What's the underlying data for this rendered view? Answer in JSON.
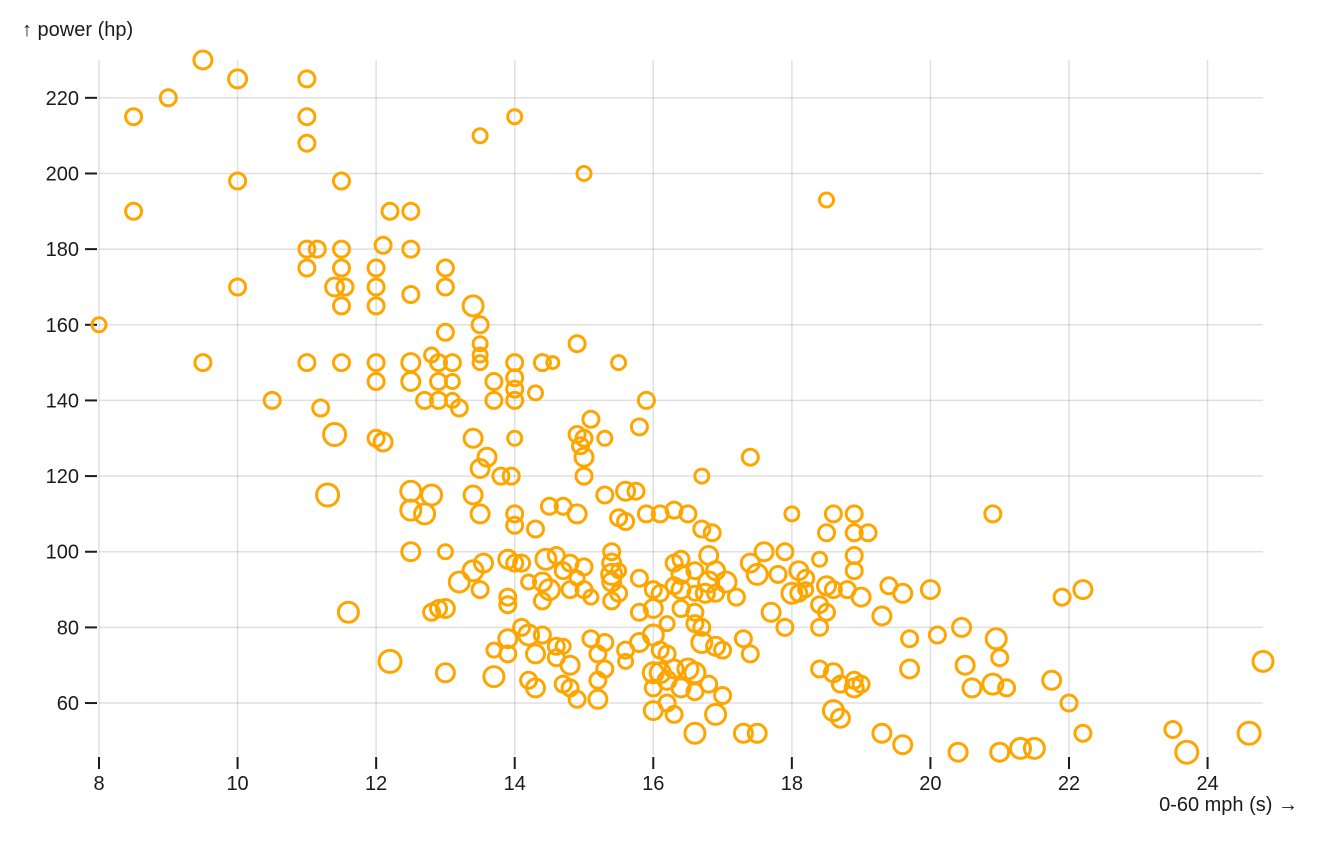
{
  "chart_data": {
    "type": "scatter",
    "title": "",
    "xlabel": "0-60 mph (s) →",
    "ylabel": "↑ power (hp)",
    "x_field": "0-60 mph (s)",
    "y_field": "power (hp)",
    "xlim": [
      8,
      24.8
    ],
    "ylim": [
      46,
      230
    ],
    "x_ticks": [
      8,
      10,
      12,
      14,
      16,
      18,
      20,
      22,
      24
    ],
    "y_ticks": [
      60,
      80,
      100,
      120,
      140,
      160,
      180,
      200,
      220
    ],
    "grid": true,
    "legend_position": "none",
    "marker": {
      "shape": "open-circle",
      "stroke": "#FFA500",
      "stroke_width": 3,
      "fill": "none"
    },
    "colors": {
      "accent": "#FFA500",
      "grid": "rgba(0,0,0,0.12)",
      "axis_text": "#1b1b1f",
      "tick": "#1b1b1f",
      "background": "#ffffff"
    },
    "points_format": [
      "x_seconds",
      "y_horsepower",
      "radius_px"
    ],
    "points": [
      [
        9.5,
        230,
        9
      ],
      [
        10,
        225,
        9
      ],
      [
        11,
        225,
        8
      ],
      [
        9,
        220,
        8
      ],
      [
        8.5,
        215,
        8
      ],
      [
        11,
        215,
        8
      ],
      [
        14,
        215,
        7
      ],
      [
        13.5,
        210,
        7
      ],
      [
        11,
        208,
        8
      ],
      [
        15,
        200,
        7
      ],
      [
        10,
        198,
        8
      ],
      [
        11.5,
        198,
        8
      ],
      [
        18.5,
        193,
        7
      ],
      [
        8.5,
        190,
        8
      ],
      [
        12.2,
        190,
        8
      ],
      [
        12.5,
        190,
        8
      ],
      [
        12.1,
        181,
        8
      ],
      [
        11,
        180,
        8
      ],
      [
        11.15,
        180,
        8
      ],
      [
        11.5,
        180,
        8
      ],
      [
        12.5,
        180,
        8
      ],
      [
        11,
        175,
        8
      ],
      [
        11.5,
        175,
        8
      ],
      [
        12,
        175,
        8
      ],
      [
        13,
        175,
        8
      ],
      [
        10,
        170,
        8
      ],
      [
        11.4,
        170,
        9
      ],
      [
        11.55,
        170,
        8
      ],
      [
        12,
        170,
        8
      ],
      [
        13,
        170,
        8
      ],
      [
        12.5,
        168,
        8
      ],
      [
        11.5,
        165,
        8
      ],
      [
        12,
        165,
        8
      ],
      [
        13.4,
        165,
        10
      ],
      [
        8,
        160,
        7
      ],
      [
        13.5,
        160,
        8
      ],
      [
        13,
        158,
        8
      ],
      [
        13.5,
        155,
        7
      ],
      [
        14.9,
        155,
        8
      ],
      [
        12.8,
        152,
        7
      ],
      [
        13.5,
        152,
        7
      ],
      [
        9.5,
        150,
        8
      ],
      [
        11,
        150,
        8
      ],
      [
        11.5,
        150,
        8
      ],
      [
        12,
        150,
        8
      ],
      [
        12.5,
        150,
        9
      ],
      [
        12.9,
        150,
        8
      ],
      [
        13.1,
        150,
        8
      ],
      [
        13.5,
        150,
        7
      ],
      [
        14,
        150,
        8
      ],
      [
        14.4,
        150,
        8
      ],
      [
        14.55,
        150,
        6
      ],
      [
        15.5,
        150,
        7
      ],
      [
        12,
        145,
        8
      ],
      [
        12.5,
        145,
        9
      ],
      [
        12.9,
        145,
        8
      ],
      [
        13.1,
        145,
        7
      ],
      [
        13.7,
        145,
        8
      ],
      [
        14,
        146,
        8
      ],
      [
        14,
        143,
        8
      ],
      [
        14.3,
        142,
        7
      ],
      [
        10.5,
        140,
        8
      ],
      [
        12.7,
        140,
        8
      ],
      [
        12.9,
        140,
        8
      ],
      [
        13.1,
        140,
        7
      ],
      [
        13.7,
        140,
        8
      ],
      [
        14,
        140,
        8
      ],
      [
        15.9,
        140,
        8
      ],
      [
        11.2,
        138,
        8
      ],
      [
        13.2,
        138,
        8
      ],
      [
        15.1,
        135,
        8
      ],
      [
        15.8,
        133,
        8
      ],
      [
        11.4,
        131,
        11
      ],
      [
        14.9,
        131,
        8
      ],
      [
        12,
        130,
        8
      ],
      [
        12.1,
        129,
        9
      ],
      [
        13.4,
        130,
        9
      ],
      [
        14,
        130,
        7
      ],
      [
        15,
        130,
        8
      ],
      [
        15.3,
        130,
        7
      ],
      [
        14.95,
        128,
        8
      ],
      [
        13.6,
        125,
        9
      ],
      [
        15,
        125,
        9
      ],
      [
        17.4,
        125,
        8
      ],
      [
        13.5,
        122,
        9
      ],
      [
        13.8,
        120,
        8
      ],
      [
        13.95,
        120,
        8
      ],
      [
        15,
        120,
        8
      ],
      [
        16.7,
        120,
        7
      ],
      [
        11.3,
        115,
        11
      ],
      [
        12.5,
        116,
        10
      ],
      [
        12.8,
        115,
        10
      ],
      [
        13.4,
        115,
        9
      ],
      [
        15.3,
        115,
        8
      ],
      [
        15.6,
        116,
        9
      ],
      [
        15.75,
        116,
        8
      ],
      [
        12.5,
        111,
        10
      ],
      [
        12.7,
        110,
        10
      ],
      [
        13.5,
        110,
        9
      ],
      [
        14,
        110,
        8
      ],
      [
        14.9,
        110,
        9
      ],
      [
        15.9,
        110,
        8
      ],
      [
        16.1,
        110,
        8
      ],
      [
        16.3,
        111,
        8
      ],
      [
        16.5,
        110,
        8
      ],
      [
        18,
        110,
        7
      ],
      [
        18.6,
        110,
        8
      ],
      [
        18.9,
        110,
        8
      ],
      [
        20.9,
        110,
        8
      ],
      [
        14.5,
        112,
        8
      ],
      [
        14.7,
        112,
        8
      ],
      [
        15.5,
        109,
        8
      ],
      [
        15.6,
        108,
        8
      ],
      [
        14,
        107,
        8
      ],
      [
        14.3,
        106,
        8
      ],
      [
        16.7,
        106,
        8
      ],
      [
        16.85,
        105,
        8
      ],
      [
        18.5,
        105,
        8
      ],
      [
        18.9,
        105,
        8
      ],
      [
        19.1,
        105,
        8
      ],
      [
        12.5,
        100,
        9
      ],
      [
        13,
        100,
        7
      ],
      [
        15.4,
        100,
        8
      ],
      [
        16.8,
        99,
        9
      ],
      [
        17.6,
        100,
        9
      ],
      [
        17.9,
        100,
        8
      ],
      [
        18.9,
        99,
        8
      ],
      [
        13.55,
        97,
        9
      ],
      [
        13.9,
        98,
        9
      ],
      [
        14,
        97,
        8
      ],
      [
        14.1,
        97,
        8
      ],
      [
        14.45,
        98,
        10
      ],
      [
        14.6,
        99,
        8
      ],
      [
        14.8,
        97,
        8
      ],
      [
        15.4,
        97,
        9
      ],
      [
        16.3,
        97,
        8
      ],
      [
        16.4,
        98,
        8
      ],
      [
        17.4,
        97,
        9
      ],
      [
        18.4,
        98,
        7
      ],
      [
        13.4,
        95,
        10
      ],
      [
        14.7,
        95,
        8
      ],
      [
        15,
        96,
        8
      ],
      [
        15.5,
        95,
        7
      ],
      [
        16.6,
        95,
        8
      ],
      [
        16.9,
        95,
        9
      ],
      [
        17.5,
        94,
        10
      ],
      [
        17.8,
        94,
        8
      ],
      [
        18.1,
        95,
        9
      ],
      [
        18.9,
        95,
        8
      ],
      [
        15.4,
        94,
        10
      ],
      [
        16.4,
        94,
        9
      ],
      [
        14.9,
        93,
        7
      ],
      [
        15.8,
        93,
        8
      ],
      [
        18.2,
        93,
        8
      ],
      [
        13.2,
        92,
        10
      ],
      [
        14.2,
        92,
        7
      ],
      [
        14.4,
        92,
        9
      ],
      [
        15.4,
        92,
        9
      ],
      [
        16.8,
        92,
        10
      ],
      [
        17.05,
        92,
        10
      ],
      [
        16.3,
        91,
        8
      ],
      [
        18.5,
        91,
        9
      ],
      [
        19.4,
        91,
        8
      ],
      [
        13.5,
        90,
        8
      ],
      [
        14.5,
        90,
        10
      ],
      [
        14.8,
        90,
        8
      ],
      [
        15,
        90,
        8
      ],
      [
        16,
        90,
        8
      ],
      [
        16.4,
        90,
        9
      ],
      [
        18.2,
        90,
        7
      ],
      [
        18.6,
        90,
        8
      ],
      [
        18.8,
        90,
        8
      ],
      [
        20,
        90,
        9
      ],
      [
        22.2,
        90,
        9
      ],
      [
        13.9,
        88,
        8
      ],
      [
        15.1,
        88,
        7
      ],
      [
        17.2,
        88,
        8
      ],
      [
        18,
        89,
        10
      ],
      [
        18.1,
        89,
        8
      ],
      [
        19,
        88,
        9
      ],
      [
        19.6,
        89,
        9
      ],
      [
        21.9,
        88,
        8
      ],
      [
        15.5,
        89,
        8
      ],
      [
        16.1,
        89,
        8
      ],
      [
        16.6,
        89,
        7
      ],
      [
        14.4,
        87,
        8
      ],
      [
        15.4,
        87,
        8
      ],
      [
        16.75,
        89,
        9
      ],
      [
        16.9,
        89,
        8
      ],
      [
        13.9,
        86,
        8
      ],
      [
        18.4,
        86,
        8
      ],
      [
        12.9,
        85,
        8
      ],
      [
        13,
        85,
        9
      ],
      [
        16,
        85,
        9
      ],
      [
        16.4,
        85,
        8
      ],
      [
        11.6,
        84,
        10
      ],
      [
        12.8,
        84,
        8
      ],
      [
        15.8,
        84,
        8
      ],
      [
        16.6,
        84,
        8
      ],
      [
        17.7,
        84,
        9
      ],
      [
        18.5,
        84,
        8
      ],
      [
        19.3,
        83,
        9
      ],
      [
        16.2,
        81,
        7
      ],
      [
        16.6,
        81,
        8
      ],
      [
        14.1,
        80,
        8
      ],
      [
        16.7,
        80,
        8
      ],
      [
        17.9,
        80,
        8
      ],
      [
        18.4,
        80,
        8
      ],
      [
        20.45,
        80,
        9
      ],
      [
        13.9,
        77,
        9
      ],
      [
        15.1,
        77,
        8
      ],
      [
        16,
        78,
        10
      ],
      [
        14.2,
        78,
        10
      ],
      [
        14.4,
        78,
        8
      ],
      [
        19.7,
        77,
        8
      ],
      [
        20.1,
        78,
        8
      ],
      [
        20.95,
        77,
        10
      ],
      [
        15.3,
        76,
        8
      ],
      [
        15.8,
        76,
        9
      ],
      [
        16.7,
        76,
        10
      ],
      [
        13.7,
        74,
        7
      ],
      [
        14.6,
        75,
        8
      ],
      [
        14.7,
        75,
        7
      ],
      [
        15.6,
        74,
        8
      ],
      [
        16.1,
        74,
        8
      ],
      [
        16.9,
        75,
        9
      ],
      [
        17,
        74,
        8
      ],
      [
        17.3,
        77,
        8
      ],
      [
        13.9,
        73,
        8
      ],
      [
        14.3,
        73,
        9
      ],
      [
        15.2,
        73,
        8
      ],
      [
        16.2,
        73,
        8
      ],
      [
        17.4,
        73,
        8
      ],
      [
        12.2,
        71,
        11
      ],
      [
        14.6,
        72,
        8
      ],
      [
        15.6,
        71,
        7
      ],
      [
        21,
        72,
        8
      ],
      [
        24.8,
        71,
        10
      ],
      [
        13,
        68,
        9
      ],
      [
        13.7,
        67,
        10
      ],
      [
        14.8,
        70,
        9
      ],
      [
        15.3,
        69,
        8
      ],
      [
        16,
        68,
        10
      ],
      [
        16.1,
        68,
        10
      ],
      [
        16.3,
        69,
        9
      ],
      [
        16.5,
        69,
        10
      ],
      [
        16.6,
        68,
        10
      ],
      [
        18.4,
        69,
        8
      ],
      [
        18.6,
        68,
        9
      ],
      [
        19.7,
        69,
        9
      ],
      [
        20.5,
        70,
        9
      ],
      [
        21.75,
        66,
        9
      ],
      [
        14.2,
        66,
        8
      ],
      [
        15.2,
        66,
        8
      ],
      [
        16.2,
        66,
        9
      ],
      [
        18.9,
        66,
        8
      ],
      [
        14.7,
        65,
        8
      ],
      [
        16.8,
        65,
        8
      ],
      [
        18.7,
        65,
        8
      ],
      [
        19,
        65,
        8
      ],
      [
        20.9,
        65,
        10
      ],
      [
        21.1,
        64,
        8
      ],
      [
        14.3,
        64,
        9
      ],
      [
        14.8,
        64,
        8
      ],
      [
        16,
        64,
        8
      ],
      [
        16.4,
        64,
        9
      ],
      [
        18.9,
        64,
        9
      ],
      [
        20.6,
        64,
        9
      ],
      [
        17,
        62,
        8
      ],
      [
        16.6,
        63,
        8
      ],
      [
        14.9,
        61,
        8
      ],
      [
        15.2,
        61,
        9
      ],
      [
        16.2,
        60,
        8
      ],
      [
        22,
        60,
        8
      ],
      [
        16,
        58,
        9
      ],
      [
        16.3,
        57,
        8
      ],
      [
        16.9,
        57,
        10
      ],
      [
        18.6,
        58,
        10
      ],
      [
        18.7,
        56,
        9
      ],
      [
        16.6,
        52,
        10
      ],
      [
        17.3,
        52,
        9
      ],
      [
        17.5,
        52,
        9
      ],
      [
        19.3,
        52,
        9
      ],
      [
        22.2,
        52,
        8
      ],
      [
        23.5,
        53,
        8
      ],
      [
        24.6,
        52,
        11
      ],
      [
        19.6,
        49,
        9
      ],
      [
        21.3,
        48,
        10
      ],
      [
        21.5,
        48,
        10
      ],
      [
        20.4,
        47,
        9
      ],
      [
        21,
        47,
        9
      ],
      [
        23.7,
        47,
        11
      ]
    ]
  }
}
